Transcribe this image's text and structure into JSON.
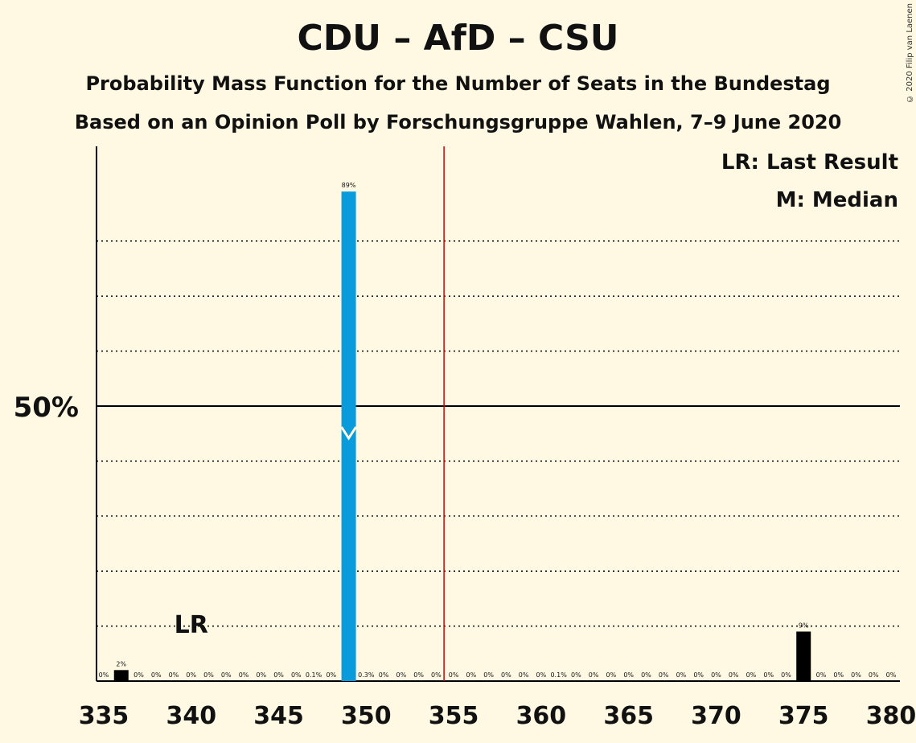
{
  "title": "CDU – AfD – CSU",
  "subtitle1": "Probability Mass Function for the Number of Seats in the Bundestag",
  "subtitle2": "Based on an Opinion Poll by Forschungsgruppe Wahlen, 7–9 June 2020",
  "copyright": "© 2020 Filip van Laenen",
  "legend": {
    "lr": "LR: Last Result",
    "m": "M: Median"
  },
  "colors": {
    "background": "#FFF9E3",
    "median_bar": "#0A9BDC",
    "bar": "#000000",
    "majority_line": "#CC0000"
  },
  "chart_data": {
    "type": "bar",
    "xlabel": "",
    "ylabel": "",
    "x": [
      335,
      336,
      337,
      338,
      339,
      340,
      341,
      342,
      343,
      344,
      345,
      346,
      347,
      348,
      349,
      350,
      351,
      352,
      353,
      354,
      355,
      356,
      357,
      358,
      359,
      360,
      361,
      362,
      363,
      364,
      365,
      366,
      367,
      368,
      369,
      370,
      371,
      372,
      373,
      374,
      375,
      376,
      377,
      378,
      379,
      380
    ],
    "values": [
      0,
      2,
      0,
      0,
      0,
      0,
      0,
      0,
      0,
      0,
      0,
      0,
      0.1,
      0,
      89,
      0.3,
      0,
      0,
      0,
      0,
      0,
      0,
      0,
      0,
      0,
      0,
      0.1,
      0,
      0,
      0,
      0,
      0,
      0,
      0,
      0,
      0,
      0,
      0,
      0,
      0,
      9,
      0,
      0,
      0,
      0,
      0
    ],
    "labels": [
      "0%",
      "2%",
      "0%",
      "0%",
      "0%",
      "0%",
      "0%",
      "0%",
      "0%",
      "0%",
      "0%",
      "0%",
      "0.1%",
      "0%",
      "89%",
      "0.3%",
      "0%",
      "0%",
      "0%",
      "0%",
      "0%",
      "0%",
      "0%",
      "0%",
      "0%",
      "0%",
      "0.1%",
      "0%",
      "0%",
      "0%",
      "0%",
      "0%",
      "0%",
      "0%",
      "0%",
      "0%",
      "0%",
      "0%",
      "0%",
      "0%",
      "9%",
      "0%",
      "0%",
      "0%",
      "0%",
      "0%"
    ],
    "x_ticks": [
      335,
      340,
      345,
      350,
      355,
      360,
      365,
      370,
      375,
      380
    ],
    "y_tick_labels": [
      "50%"
    ],
    "y_major": 50,
    "y_gridlines": [
      10,
      20,
      30,
      40,
      60,
      70,
      80
    ],
    "ylim": [
      0,
      97
    ],
    "median_seat": 349,
    "last_result_seat": 340,
    "last_result_label": "LR",
    "majority_seat": 355
  }
}
